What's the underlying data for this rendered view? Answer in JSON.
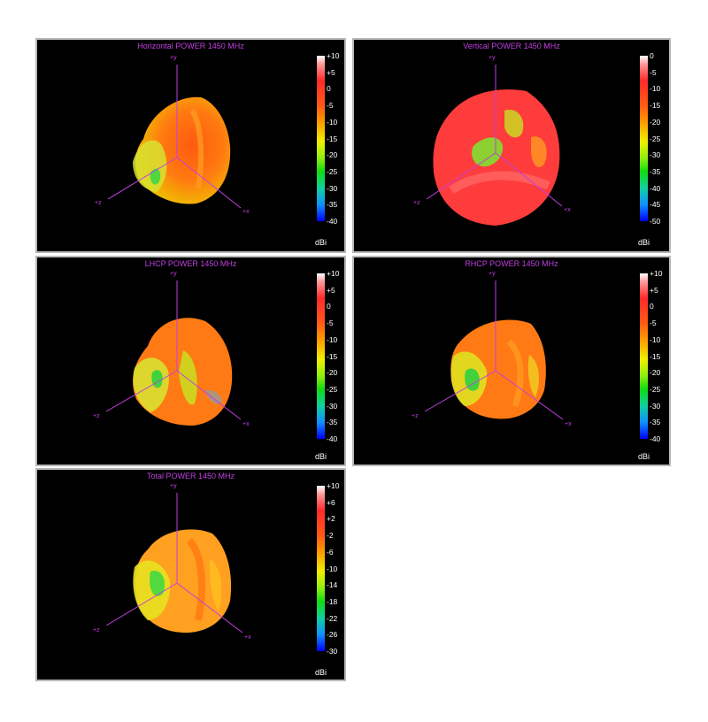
{
  "colors": {
    "axis": "#c040e0",
    "background": "#000000",
    "text": "#ffffff"
  },
  "panels": [
    {
      "title": "Horizontal POWER 1450  MHz",
      "ticks": [
        "+10",
        "+5",
        "0",
        "-5",
        "-10",
        "-15",
        "-20",
        "-25",
        "-30",
        "-35",
        "-40"
      ],
      "unit": "dBi",
      "axes": {
        "y": "+y",
        "z": "+z",
        "x": "+x"
      }
    },
    {
      "title": "Vertical POWER 1450  MHz",
      "ticks": [
        "0",
        "-5",
        "-10",
        "-15",
        "-20",
        "-25",
        "-30",
        "-35",
        "-40",
        "-45",
        "-50"
      ],
      "unit": "dBi",
      "axes": {
        "y": "+y",
        "z": "+z",
        "x": "+x"
      }
    },
    {
      "title": "LHCP POWER 1450  MHz",
      "ticks": [
        "+10",
        "+5",
        "0",
        "-5",
        "-10",
        "-15",
        "-20",
        "-25",
        "-30",
        "-35",
        "-40"
      ],
      "unit": "dBi",
      "axes": {
        "y": "+y",
        "z": "+z",
        "x": "+x"
      }
    },
    {
      "title": "RHCP POWER 1450  MHz",
      "ticks": [
        "+10",
        "+5",
        "0",
        "-5",
        "-10",
        "-15",
        "-20",
        "-25",
        "-30",
        "-35",
        "-40"
      ],
      "unit": "dBi",
      "axes": {
        "y": "+y",
        "z": "+z",
        "x": "+x"
      }
    },
    {
      "title": "Total POWER 1450  MHz",
      "ticks": [
        "+10",
        "+6",
        "+2",
        "-2",
        "-6",
        "-10",
        "-14",
        "-18",
        "-22",
        "-26",
        "-30"
      ],
      "unit": "dBi",
      "axes": {
        "y": "+y",
        "z": "+z",
        "x": "+x"
      }
    }
  ]
}
